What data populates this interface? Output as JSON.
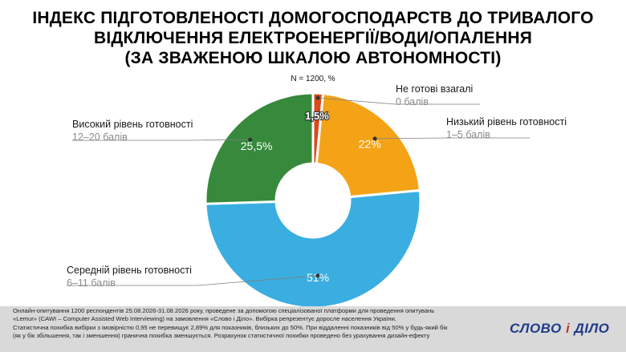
{
  "title_lines": [
    "ІНДЕКС ПІДГОТОВЛЕНОСТІ ДОМОГОСПОДАРСТВ ДО ТРИВАЛОГО",
    "ВІДКЛЮЧЕННЯ ЕЛЕКТРОЕНЕРГІЇ/ВОДИ/ОПАЛЕННЯ",
    "(ЗА ЗВАЖЕНОЮ ШКАЛОЮ АВТОНОМНОСТІ)"
  ],
  "subtitle": "N = 1200, %",
  "chart_data": {
    "type": "pie",
    "title": "ІНДЕКС ПІДГОТОВЛЕНОСТІ ДОМОГОСПОДАРСТВ ДО ТРИВАЛОГО ВІДКЛЮЧЕННЯ ЕЛЕКТРОЕНЕРГІЇ/ВОДИ/ОПАЛЕННЯ (ЗА ЗВАЖЕНОЮ ШКАЛОЮ АВТОНОМНОСТІ)",
    "subtitle": "N = 1200, %",
    "donut": true,
    "slices": [
      {
        "name": "Не готові взагалі",
        "sublabel": "0 балів",
        "value": 1.5,
        "label": "1,5%",
        "color": "#d94a1e"
      },
      {
        "name": "Низький рівень готовності",
        "sublabel": "1–5 балів",
        "value": 22,
        "label": "22%",
        "color": "#f5a316"
      },
      {
        "name": "Середній рівень готовності",
        "sublabel": "6–11 балів",
        "value": 51,
        "label": "51%",
        "color": "#3aaee0"
      },
      {
        "name": "Високий рівень готовності",
        "sublabel": "12–20 балів",
        "value": 25.5,
        "label": "25,5%",
        "color": "#378a3c"
      }
    ]
  },
  "footnote_lines": [
    "Онлайн-опитування 1200 респондентів 25.08.2026-31.08.2026 року, проведене за допомогою спеціалізованої платформи для проведення опитувань",
    "«Lemur» (CAWI – Computer Assisted Web Interviewing) на замовлення «Слово і Діло». Вибірка репрезентує доросле населення України.",
    "Статистична похибка вибірки з імовірністю 0,95 не перевищує 2,89% для показників, близьких до 50%. При віддаленні показників від 50% у будь-який бік",
    "(як у бік збільшення, так і зменшення) гранична похибка зменшується. Розрахунок статистичної похибки проведено без урахування дизайн-ефекту"
  ],
  "logo": {
    "part1": "СЛОВО ",
    "part2": "і",
    "part3": " ДІЛО"
  }
}
